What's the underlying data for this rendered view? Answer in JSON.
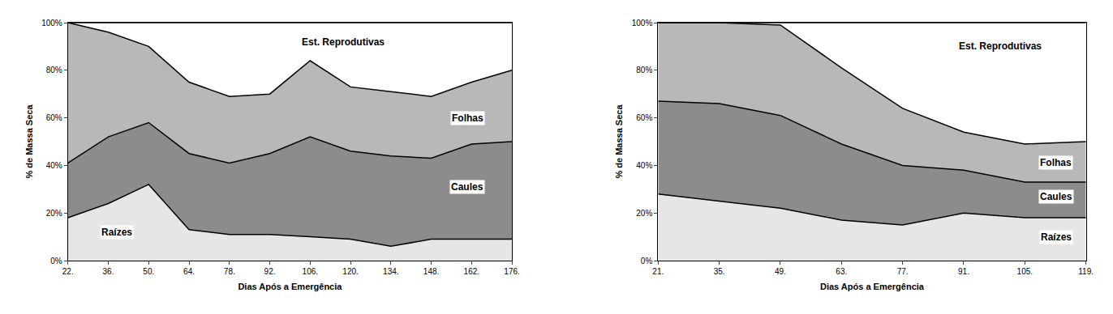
{
  "chart_data": [
    {
      "type": "area",
      "stacked": true,
      "grid": false,
      "x_label": "Dias Após a Emergência",
      "y_label": "% de Massa Seca",
      "categories": [
        "22.",
        "36.",
        "50.",
        "64.",
        "78.",
        "92.",
        "106.",
        "120.",
        "134.",
        "148.",
        "162.",
        "176."
      ],
      "ylim": [
        0,
        100
      ],
      "yticks": [
        {
          "value": 0,
          "label": "0%"
        },
        {
          "value": 20,
          "label": "20%"
        },
        {
          "value": 40,
          "label": "40%"
        },
        {
          "value": 60,
          "label": "60%"
        },
        {
          "value": 80,
          "label": "80%"
        },
        {
          "value": 100,
          "label": "100%"
        }
      ],
      "series": [
        {
          "name": "Raízes",
          "color": "#e6e6e6",
          "values": [
            18,
            24,
            32,
            13,
            11,
            11,
            10,
            9,
            6,
            9,
            9,
            9
          ]
        },
        {
          "name": "Caules",
          "color": "#8c8c8c",
          "values": [
            23,
            28,
            26,
            32,
            30,
            34,
            42,
            37,
            38,
            34,
            40,
            41
          ]
        },
        {
          "name": "Folhas",
          "color": "#b8b8b8",
          "values": [
            59,
            44,
            32,
            30,
            28,
            25,
            32,
            27,
            27,
            26,
            26,
            30
          ]
        },
        {
          "name": "Est. Reprodutivas",
          "color": "#ffffff",
          "values": [
            0,
            4,
            10,
            25,
            31,
            30,
            16,
            27,
            29,
            31,
            25,
            20
          ]
        }
      ]
    },
    {
      "type": "area",
      "stacked": true,
      "grid": false,
      "x_label": "Dias Após a Emergência",
      "y_label": "% de Massa Seca",
      "categories": [
        "21.",
        "35.",
        "49.",
        "63.",
        "77.",
        "91.",
        "105.",
        "119."
      ],
      "ylim": [
        0,
        100
      ],
      "yticks": [
        {
          "value": 0,
          "label": "0%"
        },
        {
          "value": 20,
          "label": "20%"
        },
        {
          "value": 40,
          "label": "40%"
        },
        {
          "value": 60,
          "label": "60%"
        },
        {
          "value": 80,
          "label": "80%"
        },
        {
          "value": 100,
          "label": "100%"
        }
      ],
      "series": [
        {
          "name": "Raízes",
          "color": "#e6e6e6",
          "values": [
            28,
            25,
            22,
            17,
            15,
            20,
            18,
            18
          ]
        },
        {
          "name": "Caules",
          "color": "#8c8c8c",
          "values": [
            39,
            41,
            39,
            32,
            25,
            18,
            15,
            15
          ]
        },
        {
          "name": "Folhas",
          "color": "#b8b8b8",
          "values": [
            33,
            34,
            38,
            32,
            24,
            16,
            16,
            17
          ]
        },
        {
          "name": "Est. Reprodutivas",
          "color": "#ffffff",
          "values": [
            0,
            0,
            1,
            19,
            36,
            46,
            51,
            50
          ]
        }
      ]
    }
  ]
}
